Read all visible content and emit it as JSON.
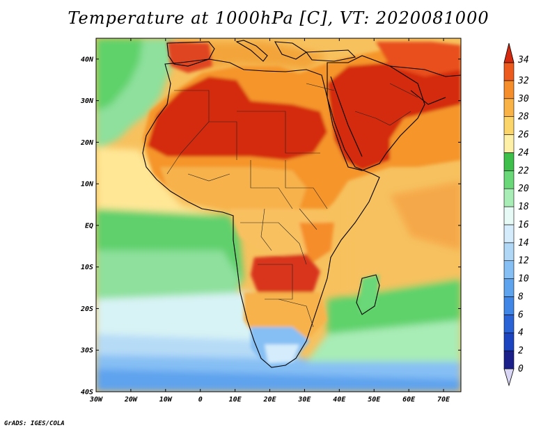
{
  "title": "Temperature at 1000hPa [C], VT: 2020081000",
  "credit": "GrADS: IGES/COLA",
  "map": {
    "lon_range": [
      -30,
      75
    ],
    "lat_range": [
      -40,
      45
    ],
    "lon_ticks": [
      {
        "lon": -30,
        "label": "30W"
      },
      {
        "lon": -20,
        "label": "20W"
      },
      {
        "lon": -10,
        "label": "10W"
      },
      {
        "lon": 0,
        "label": "0"
      },
      {
        "lon": 10,
        "label": "10E"
      },
      {
        "lon": 20,
        "label": "20E"
      },
      {
        "lon": 30,
        "label": "30E"
      },
      {
        "lon": 40,
        "label": "40E"
      },
      {
        "lon": 50,
        "label": "50E"
      },
      {
        "lon": 60,
        "label": "60E"
      },
      {
        "lon": 70,
        "label": "70E"
      }
    ],
    "lat_ticks": [
      {
        "lat": 40,
        "label": "40N"
      },
      {
        "lat": 30,
        "label": "30N"
      },
      {
        "lat": 20,
        "label": "20N"
      },
      {
        "lat": 10,
        "label": "10N"
      },
      {
        "lat": 0,
        "label": "EQ"
      },
      {
        "lat": -10,
        "label": "10S"
      },
      {
        "lat": -20,
        "label": "20S"
      },
      {
        "lat": -30,
        "label": "30S"
      },
      {
        "lat": -40,
        "label": "40S"
      }
    ]
  },
  "colorbar": {
    "levels": [
      "0",
      "2",
      "4",
      "6",
      "8",
      "10",
      "12",
      "14",
      "16",
      "18",
      "20",
      "22",
      "24",
      "26",
      "28",
      "30",
      "32",
      "34"
    ],
    "colors": [
      "#1a1f8a",
      "#1c44c0",
      "#2a63d6",
      "#3f86e6",
      "#5ea3ee",
      "#86bff4",
      "#b0d8f6",
      "#d4ecfb",
      "#e8faf5",
      "#a8ecb6",
      "#6ad878",
      "#3ebe4a",
      "#fff0a8",
      "#fbd46a",
      "#f9b246",
      "#f58d2a",
      "#ec5a1e",
      "#d42a10"
    ]
  }
}
